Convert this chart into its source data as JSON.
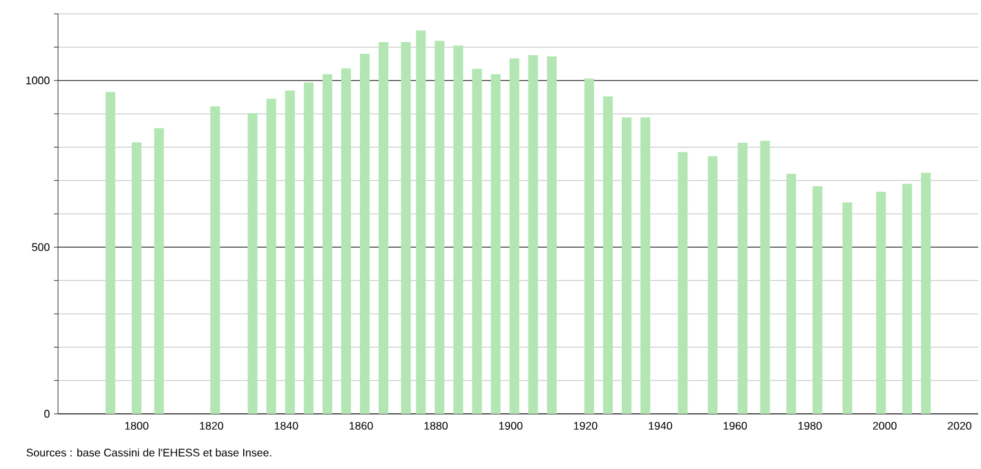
{
  "chart_data": {
    "type": "bar",
    "x": [
      1793,
      1800,
      1806,
      1821,
      1831,
      1836,
      1841,
      1846,
      1851,
      1856,
      1861,
      1866,
      1872,
      1876,
      1881,
      1886,
      1891,
      1896,
      1901,
      1906,
      1911,
      1921,
      1926,
      1931,
      1936,
      1946,
      1954,
      1962,
      1968,
      1975,
      1982,
      1990,
      1999,
      2006,
      2011
    ],
    "values": [
      965,
      814,
      857,
      922,
      902,
      945,
      970,
      994,
      1019,
      1036,
      1080,
      1115,
      1115,
      1150,
      1119,
      1105,
      1035,
      1019,
      1066,
      1076,
      1072,
      1006,
      952,
      889,
      889,
      785,
      773,
      813,
      819,
      720,
      683,
      634,
      666,
      690,
      723
    ],
    "color": "#b3e6b3",
    "xlim": [
      1779,
      2025
    ],
    "xticks": [
      1800,
      1820,
      1840,
      1860,
      1880,
      1900,
      1920,
      1940,
      1960,
      1980,
      2000,
      2020
    ],
    "ylim": [
      0,
      1200
    ],
    "yticks": [
      0,
      {
        "value": 100,
        "label": null
      },
      {
        "value": 200,
        "label": null
      },
      {
        "value": 300,
        "label": null
      },
      {
        "value": 400,
        "label": null
      },
      500,
      {
        "value": 600,
        "label": null
      },
      {
        "value": 700,
        "label": null
      },
      {
        "value": 800,
        "label": null
      },
      {
        "value": 900,
        "label": null
      },
      1000,
      {
        "value": 1100,
        "label": null
      },
      {
        "value": 1200,
        "label": null
      }
    ],
    "grid": "y",
    "annotations": [
      "Sources : base Cassini de l'EHESS et base Insee."
    ]
  }
}
